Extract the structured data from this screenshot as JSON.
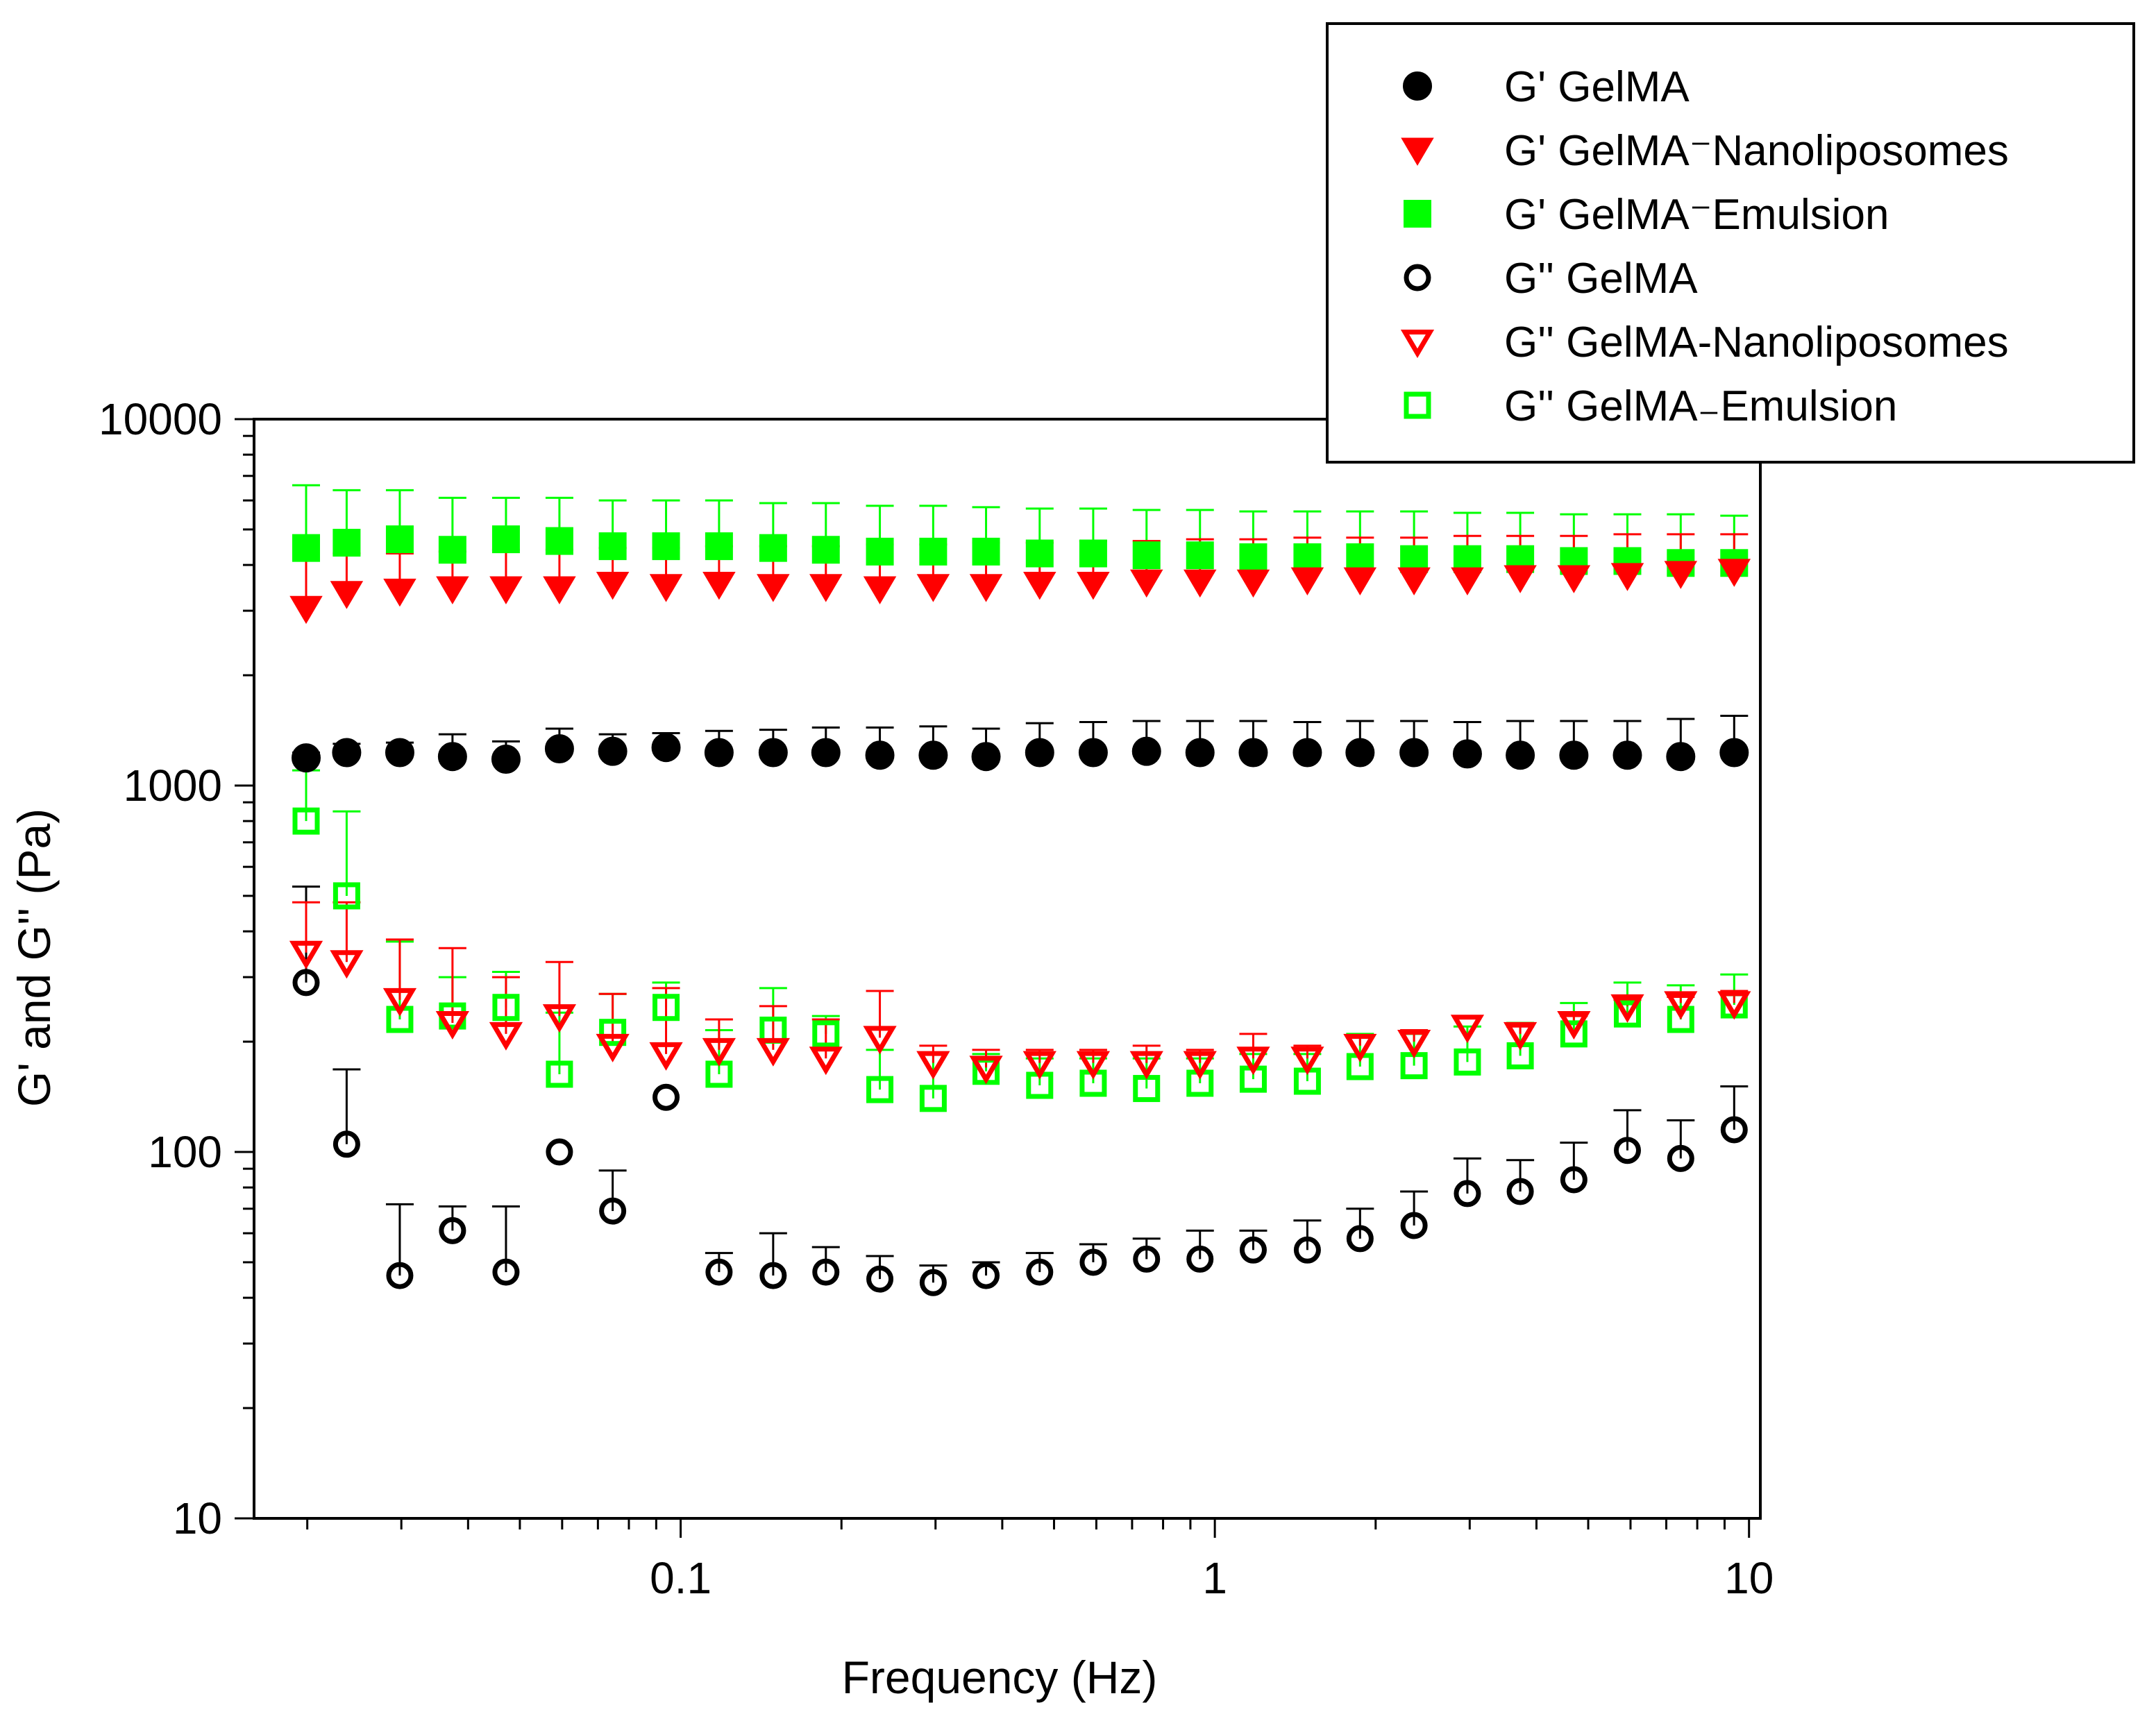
{
  "chart_data": {
    "type": "scatter",
    "title": "",
    "xlabel": "Frequency (Hz)",
    "ylabel": "G' and G'' (Pa)",
    "xscale": "log",
    "yscale": "log",
    "xlim": [
      0.0159,
      10.5
    ],
    "ylim": [
      10,
      10000
    ],
    "x_ticks": [
      {
        "value": 0.1,
        "label": "0.1"
      },
      {
        "value": 1,
        "label": "1"
      },
      {
        "value": 10,
        "label": "10"
      }
    ],
    "y_ticks": [
      {
        "value": 10,
        "label": "10"
      },
      {
        "value": 100,
        "label": "100"
      },
      {
        "value": 1000,
        "label": "1000"
      },
      {
        "value": 10000,
        "label": "10000"
      }
    ],
    "legend_position": "top-right",
    "x": [
      0.0199,
      0.0237,
      0.0298,
      0.0374,
      0.0471,
      0.0593,
      0.0746,
      0.0939,
      0.118,
      0.149,
      0.187,
      0.236,
      0.297,
      0.373,
      0.47,
      0.592,
      0.745,
      0.938,
      1.18,
      1.49,
      1.87,
      2.36,
      2.97,
      3.73,
      4.7,
      5.92,
      7.45,
      9.38
    ],
    "series": [
      {
        "name": "G' GelMA",
        "marker": "filled-circle",
        "color": "#000000",
        "values": [
          1190,
          1230,
          1230,
          1200,
          1180,
          1260,
          1240,
          1270,
          1230,
          1230,
          1230,
          1210,
          1210,
          1200,
          1230,
          1230,
          1240,
          1230,
          1230,
          1230,
          1230,
          1230,
          1220,
          1210,
          1210,
          1210,
          1200,
          1230
        ],
        "error_upper": [
          1230,
          1300,
          1310,
          1380,
          1320,
          1430,
          1380,
          1390,
          1410,
          1420,
          1440,
          1440,
          1450,
          1430,
          1480,
          1490,
          1500,
          1500,
          1500,
          1490,
          1500,
          1500,
          1490,
          1500,
          1500,
          1500,
          1520,
          1550
        ]
      },
      {
        "name": "G' GelMA⁻Nanoliposomes",
        "marker": "filled-triangle-down",
        "color": "#ff0000",
        "values": [
          3050,
          3350,
          3400,
          3450,
          3450,
          3450,
          3550,
          3500,
          3550,
          3500,
          3500,
          3450,
          3500,
          3500,
          3550,
          3550,
          3600,
          3600,
          3600,
          3650,
          3650,
          3650,
          3650,
          3700,
          3700,
          3750,
          3800,
          3850
        ],
        "error_upper": [
          4300,
          4300,
          4300,
          4350,
          4400,
          4400,
          4450,
          4450,
          4500,
          4500,
          4500,
          4550,
          4550,
          4600,
          4600,
          4650,
          4650,
          4700,
          4700,
          4750,
          4750,
          4750,
          4800,
          4800,
          4800,
          4850,
          4850,
          4850
        ]
      },
      {
        "name": "G' GelMA⁻Emulsion",
        "marker": "filled-square",
        "color": "#00ff00",
        "values": [
          4450,
          4600,
          4700,
          4400,
          4700,
          4650,
          4500,
          4500,
          4500,
          4450,
          4400,
          4350,
          4350,
          4350,
          4300,
          4300,
          4250,
          4250,
          4200,
          4200,
          4200,
          4150,
          4150,
          4150,
          4100,
          4100,
          4050,
          4050
        ],
        "error_upper": [
          6600,
          6400,
          6400,
          6100,
          6100,
          6100,
          6000,
          6000,
          6000,
          5900,
          5900,
          5800,
          5800,
          5750,
          5700,
          5700,
          5650,
          5650,
          5600,
          5600,
          5600,
          5600,
          5550,
          5550,
          5500,
          5500,
          5500,
          5450
        ]
      },
      {
        "name": "G'' GelMA",
        "marker": "open-circle",
        "color": "#000000",
        "values": [
          290,
          105,
          46,
          61,
          47,
          100,
          69,
          141,
          47,
          46,
          47,
          45,
          44,
          46,
          47,
          50,
          51,
          51,
          54,
          54,
          58,
          63,
          77,
          78,
          84,
          101,
          96,
          115
        ],
        "error_upper": [
          530,
          168,
          72,
          71,
          71,
          null,
          89,
          null,
          53,
          60,
          55,
          52,
          49,
          50,
          53,
          56,
          58,
          61,
          61,
          65,
          70,
          78,
          96,
          95,
          106,
          130,
          122,
          151
        ]
      },
      {
        "name": "G'' GelMA-Nanoliposomes",
        "marker": "open-triangle-down",
        "color": "#ff0000",
        "values": [
          350,
          330,
          260,
          225,
          210,
          235,
          195,
          185,
          190,
          190,
          180,
          205,
          175,
          170,
          175,
          175,
          175,
          175,
          180,
          180,
          195,
          200,
          220,
          210,
          225,
          250,
          255,
          255
        ],
        "error_upper": [
          480,
          480,
          380,
          360,
          300,
          330,
          270,
          280,
          230,
          250,
          230,
          275,
          195,
          190,
          190,
          190,
          195,
          190,
          210,
          195,
          205,
          215,
          220,
          220,
          235,
          260,
          265,
          275
        ]
      },
      {
        "name": "G'' GelMA₋Emulsion",
        "marker": "open-square",
        "color": "#00ff00",
        "values": [
          800,
          500,
          230,
          235,
          248,
          163,
          212,
          248,
          163,
          215,
          210,
          148,
          140,
          166,
          152,
          154,
          149,
          154,
          158,
          156,
          171,
          172,
          176,
          183,
          210,
          238,
          230,
          252
        ],
        "error_upper": [
          1100,
          850,
          375,
          300,
          310,
          240,
          270,
          290,
          215,
          280,
          235,
          190,
          185,
          185,
          180,
          180,
          180,
          180,
          185,
          185,
          210,
          210,
          220,
          225,
          255,
          290,
          285,
          305
        ]
      }
    ]
  }
}
